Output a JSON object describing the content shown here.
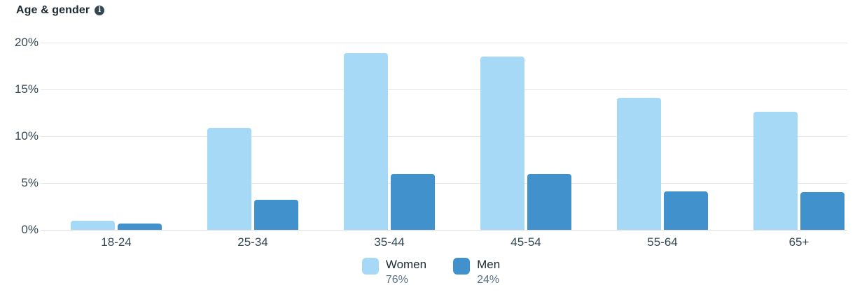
{
  "header": {
    "title": "Age & gender",
    "info_icon": "i"
  },
  "chart_data": {
    "type": "bar",
    "title": "Age & gender",
    "categories": [
      "18-24",
      "25-34",
      "35-44",
      "45-54",
      "55-64",
      "65+"
    ],
    "series": [
      {
        "name": "Women",
        "share": "76%",
        "color": "#A5D9F6",
        "values": [
          1.0,
          10.9,
          18.9,
          18.5,
          14.1,
          12.6
        ]
      },
      {
        "name": "Men",
        "share": "24%",
        "color": "#4191CC",
        "values": [
          0.7,
          3.2,
          6.0,
          6.0,
          4.1,
          4.0
        ]
      }
    ],
    "yticks": [
      "0%",
      "5%",
      "10%",
      "15%",
      "20%"
    ],
    "ylim": [
      0,
      20
    ],
    "grid": true,
    "legend_position": "bottom",
    "colors": {
      "grid": "#E6E7EA",
      "axis_text": "#344854",
      "title_text": "#1C2B33",
      "legend_percent": "#5A7083"
    }
  }
}
